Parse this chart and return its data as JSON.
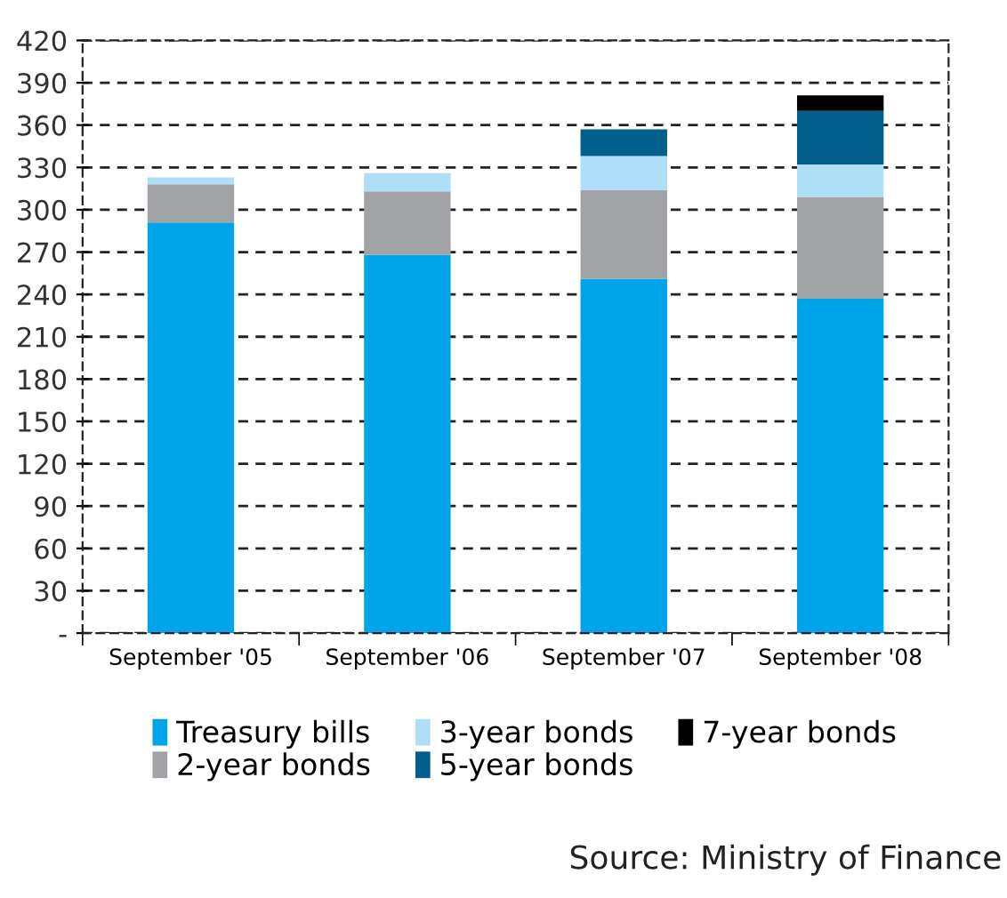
{
  "chart_data": {
    "type": "bar",
    "stacked": true,
    "categories": [
      "September '05",
      "September '06",
      "September '07",
      "September '08"
    ],
    "series": [
      {
        "name": "Treasury bills",
        "color": "#00a4e8",
        "values": [
          291,
          268,
          251,
          237
        ]
      },
      {
        "name": "2-year bonds",
        "color": "#a1a3a7",
        "values": [
          27,
          45,
          63,
          72
        ]
      },
      {
        "name": "3-year bonds",
        "color": "#afdff7",
        "values": [
          5,
          13,
          24,
          23
        ]
      },
      {
        "name": "5-year bonds",
        "color": "#005f8c",
        "values": [
          null,
          null,
          19,
          38
        ]
      },
      {
        "name": "7-year bonds",
        "color": "#000000",
        "values": [
          null,
          null,
          null,
          11
        ]
      }
    ],
    "ylim": [
      0,
      420
    ],
    "yticks": [
      {
        "value": 0,
        "label": "-"
      },
      30,
      60,
      90,
      120,
      150,
      180,
      210,
      240,
      270,
      300,
      330,
      360,
      390,
      420
    ],
    "grid": "y",
    "legend": "bottom",
    "annotations": [
      "Source: Ministry of Finance"
    ]
  }
}
